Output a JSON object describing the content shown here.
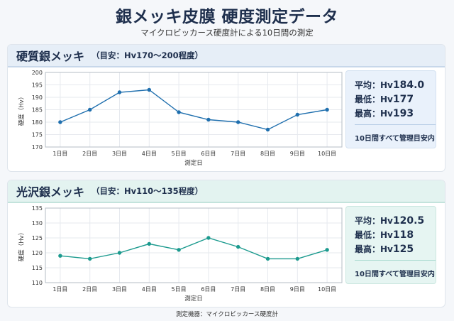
{
  "title": "銀メッキ皮膜 硬度測定データ",
  "subtitle": "マイクロビッカース硬度計による10日間の測定",
  "footer": "測定機器：マイクロビッカース硬度計",
  "colors": {
    "panel0_line": "#1f6fae",
    "panel1_line": "#1b9a8e",
    "text": "#1e2f4d"
  },
  "chart_data": [
    {
      "type": "line",
      "panel_title": "硬質銀メッキ",
      "panel_range": "（目安：Hv170～200程度）",
      "categories": [
        "1日目",
        "2日目",
        "3日目",
        "4日目",
        "5日目",
        "6日目",
        "7日目",
        "8日目",
        "9日目",
        "10日目"
      ],
      "values": [
        180,
        185,
        192,
        193,
        184,
        181,
        180,
        177,
        183,
        185
      ],
      "xlabel": "測定日",
      "ylabel": "硬度（Hv）",
      "ylim": [
        170,
        200
      ],
      "yticks": [
        170,
        175,
        180,
        185,
        190,
        195,
        200
      ],
      "grid": true,
      "stats": {
        "avg_label": "平均：Hv",
        "avg_value": "184.0",
        "min_label": "最低：Hv",
        "min_value": "177",
        "max_label": "最高：Hv",
        "max_value": "193",
        "note": "10日間すべて管理目安内"
      }
    },
    {
      "type": "line",
      "panel_title": "光沢銀メッキ",
      "panel_range": "（目安：Hv110～135程度）",
      "categories": [
        "1日目",
        "2日目",
        "3日目",
        "4日目",
        "5日目",
        "6日目",
        "7日目",
        "8日目",
        "9日目",
        "10日目"
      ],
      "values": [
        119,
        118,
        120,
        123,
        121,
        125,
        122,
        118,
        118,
        121
      ],
      "xlabel": "測定日",
      "ylabel": "硬度（Hv）",
      "ylim": [
        110,
        135
      ],
      "yticks": [
        110,
        115,
        120,
        125,
        130,
        135
      ],
      "grid": true,
      "stats": {
        "avg_label": "平均：Hv",
        "avg_value": "120.5",
        "min_label": "最低：Hv",
        "min_value": "118",
        "max_label": "最高：Hv",
        "max_value": "125",
        "note": "10日間すべて管理目安内"
      }
    }
  ]
}
